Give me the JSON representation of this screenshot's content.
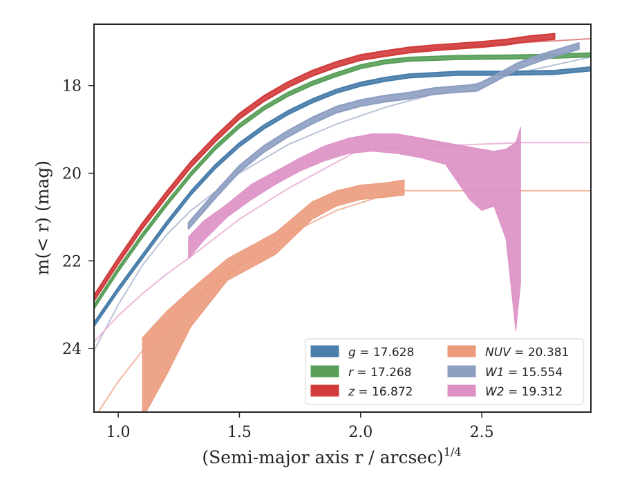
{
  "chart_data": {
    "type": "line",
    "xlabel": "(Semi-major axis r / arcsec)",
    "xlabel_exponent": "1/4",
    "ylabel": "m(< r) (mag)",
    "xlim": [
      0.9,
      2.95
    ],
    "ylim": [
      25.45,
      16.6
    ],
    "y_inverted": true,
    "grid": false,
    "legend_position": "lower-right",
    "x_ticks": [
      {
        "value": 1.0,
        "label": "1.0"
      },
      {
        "value": 1.5,
        "label": "1.5"
      },
      {
        "value": 2.0,
        "label": "2.0"
      },
      {
        "value": 2.5,
        "label": "2.5"
      }
    ],
    "y_ticks": [
      {
        "value": 18,
        "label": "18"
      },
      {
        "value": 20,
        "label": "20"
      },
      {
        "value": 22,
        "label": "22"
      },
      {
        "value": 24,
        "label": "24"
      }
    ],
    "series": [
      {
        "name": "g",
        "legend_value": "17.628",
        "color": "#4a7eab",
        "x": [
          0.9,
          1.0,
          1.1,
          1.2,
          1.3,
          1.4,
          1.5,
          1.6,
          1.7,
          1.8,
          1.9,
          2.0,
          2.1,
          2.2,
          2.4,
          2.6,
          2.8,
          2.95
        ],
        "y": [
          23.45,
          22.65,
          21.9,
          21.15,
          20.45,
          19.85,
          19.35,
          18.95,
          18.62,
          18.35,
          18.13,
          17.97,
          17.86,
          17.78,
          17.72,
          17.72,
          17.7,
          17.62
        ],
        "halfwidth": 0.04,
        "model": {
          "x": [
            0.9,
            1.0,
            1.1,
            1.2,
            1.3,
            1.5,
            1.7,
            1.9,
            2.1,
            2.3,
            2.5,
            2.7,
            2.95
          ],
          "y": [
            24.05,
            23.0,
            22.1,
            21.4,
            20.85,
            20.0,
            19.35,
            18.88,
            18.5,
            18.2,
            17.92,
            17.65,
            17.35
          ],
          "color": "#b8c2d8"
        }
      },
      {
        "name": "r",
        "legend_value": "17.268",
        "color": "#5aa05a",
        "x": [
          0.9,
          1.0,
          1.1,
          1.2,
          1.3,
          1.4,
          1.5,
          1.6,
          1.7,
          1.8,
          1.9,
          2.0,
          2.1,
          2.2,
          2.4,
          2.6,
          2.8,
          2.95
        ],
        "y": [
          23.05,
          22.2,
          21.42,
          20.7,
          20.02,
          19.42,
          18.92,
          18.52,
          18.2,
          17.95,
          17.75,
          17.57,
          17.46,
          17.4,
          17.36,
          17.35,
          17.33,
          17.3
        ],
        "halfwidth": 0.04
      },
      {
        "name": "z",
        "legend_value": "16.872",
        "color": "#d13b3b",
        "x": [
          0.9,
          1.0,
          1.1,
          1.2,
          1.3,
          1.4,
          1.5,
          1.6,
          1.7,
          1.8,
          1.9,
          2.0,
          2.1,
          2.2,
          2.3,
          2.4,
          2.5,
          2.6,
          2.7,
          2.8
        ],
        "y": [
          22.85,
          22.0,
          21.2,
          20.48,
          19.8,
          19.22,
          18.7,
          18.3,
          17.98,
          17.72,
          17.52,
          17.36,
          17.27,
          17.19,
          17.14,
          17.1,
          17.06,
          17.01,
          16.93,
          16.88
        ],
        "halfwidth": 0.06,
        "model": {
          "x": [
            2.2,
            2.4,
            2.6,
            2.8,
            2.95
          ],
          "y": [
            17.2,
            17.11,
            17.04,
            16.98,
            16.93
          ],
          "color": "#e08a8a"
        }
      },
      {
        "name": "NUV",
        "legend_value": "20.381",
        "color": "#ec9a7b",
        "x": [
          1.1,
          1.2,
          1.3,
          1.45,
          1.55,
          1.65,
          1.8,
          1.9,
          2.0,
          2.1,
          2.18
        ],
        "y_low": [
          25.6,
          24.6,
          23.5,
          22.45,
          22.15,
          21.85,
          21.05,
          20.75,
          20.6,
          20.55,
          20.5
        ],
        "y_high": [
          23.75,
          23.15,
          22.65,
          21.95,
          21.65,
          21.35,
          20.65,
          20.4,
          20.27,
          20.22,
          20.15
        ],
        "model": {
          "x": [
            0.9,
            1.0,
            1.1,
            1.2,
            1.3,
            1.5,
            1.7,
            1.9,
            2.1,
            2.18,
            2.95
          ],
          "y": [
            25.6,
            24.75,
            24.05,
            23.45,
            22.95,
            22.1,
            21.4,
            20.85,
            20.5,
            20.4,
            20.4
          ],
          "color": "#f3b7a0"
        }
      },
      {
        "name": "W1",
        "legend_value": "15.554",
        "color": "#8e9fc2",
        "x": [
          1.29,
          1.4,
          1.5,
          1.6,
          1.7,
          1.8,
          1.9,
          2.0,
          2.1,
          2.2,
          2.3,
          2.4,
          2.48,
          2.55,
          2.65,
          2.75,
          2.9
        ],
        "y": [
          21.2,
          20.5,
          19.9,
          19.45,
          19.1,
          18.8,
          18.55,
          18.4,
          18.3,
          18.23,
          18.13,
          18.08,
          18.05,
          17.85,
          17.55,
          17.35,
          17.1
        ],
        "halfwidth": 0.07
      },
      {
        "name": "W2",
        "legend_value": "19.312",
        "color": "#dc8fc4",
        "x": [
          1.29,
          1.35,
          1.45,
          1.55,
          1.65,
          1.75,
          1.85,
          1.95,
          2.05,
          2.15,
          2.25,
          2.35,
          2.45,
          2.5,
          2.55,
          2.6,
          2.64,
          2.66
        ],
        "y_low": [
          21.95,
          21.55,
          21.0,
          20.6,
          20.25,
          19.95,
          19.72,
          19.55,
          19.5,
          19.55,
          19.65,
          19.8,
          20.6,
          20.85,
          20.75,
          21.5,
          23.6,
          22.5
        ],
        "y_high": [
          21.45,
          21.1,
          20.7,
          20.25,
          19.95,
          19.65,
          19.38,
          19.2,
          19.1,
          19.1,
          19.2,
          19.3,
          19.4,
          19.45,
          19.5,
          19.45,
          19.3,
          18.95
        ],
        "model": {
          "x": [
            0.9,
            1.0,
            1.1,
            1.2,
            1.3,
            1.5,
            1.7,
            1.9,
            2.0,
            2.66,
            2.95
          ],
          "y": [
            23.85,
            23.25,
            22.75,
            22.3,
            21.9,
            21.05,
            20.35,
            19.75,
            19.45,
            19.3,
            19.3
          ],
          "color": "#ecb8da"
        }
      }
    ]
  }
}
